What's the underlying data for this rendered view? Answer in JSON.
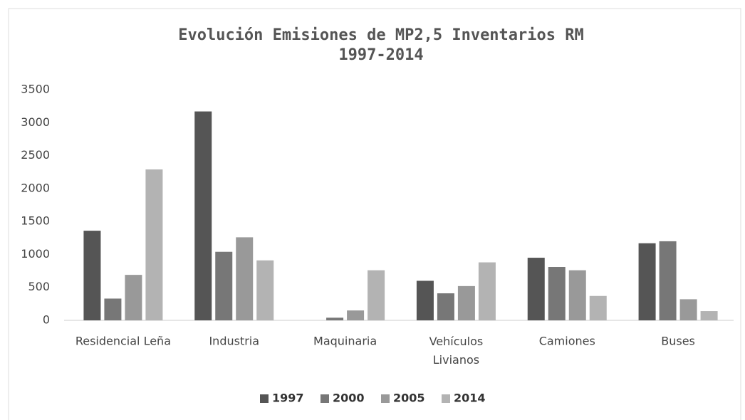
{
  "chart_data": {
    "type": "bar",
    "title": "Evolución Emisiones de MP2,5 Inventarios RM",
    "subtitle": "1997-2014",
    "categories": [
      "Residencial Leña",
      "Industria",
      "Maquinaria",
      "Vehículos Livianos",
      "Camiones",
      "Buses"
    ],
    "series": [
      {
        "name": "1997",
        "color": "#555555",
        "values": [
          1360,
          3170,
          0,
          600,
          950,
          1170
        ]
      },
      {
        "name": "2000",
        "color": "#777777",
        "values": [
          330,
          1040,
          40,
          410,
          810,
          1200
        ]
      },
      {
        "name": "2005",
        "color": "#999999",
        "values": [
          690,
          1260,
          150,
          520,
          760,
          320
        ]
      },
      {
        "name": "2014",
        "color": "#b3b3b3",
        "values": [
          2290,
          910,
          760,
          880,
          370,
          140
        ]
      }
    ],
    "ylim": [
      0,
      3500
    ],
    "yticks": [
      0,
      500,
      1000,
      1500,
      2000,
      2500,
      3000,
      3500
    ],
    "grid": false,
    "legend": "bottom"
  }
}
